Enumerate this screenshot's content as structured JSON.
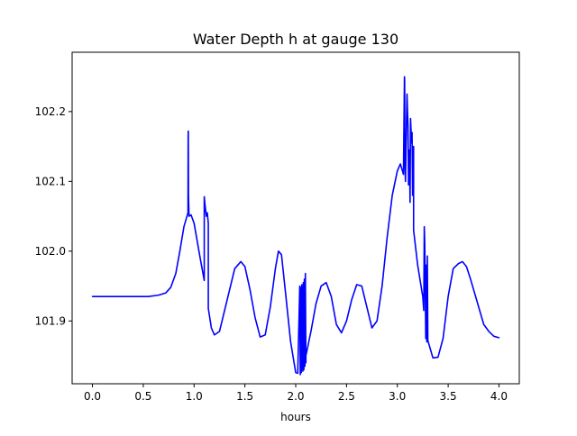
{
  "chart_data": {
    "type": "line",
    "title": "Water Depth h at gauge 130",
    "xlabel": "hours",
    "ylabel": "",
    "xlim": [
      -0.2,
      4.2
    ],
    "ylim": [
      101.81,
      102.285
    ],
    "xticks": [
      0.0,
      0.5,
      1.0,
      1.5,
      2.0,
      2.5,
      3.0,
      3.5,
      4.0
    ],
    "xtick_labels": [
      "0.0",
      "0.5",
      "1.0",
      "1.5",
      "2.0",
      "2.5",
      "3.0",
      "3.5",
      "4.0"
    ],
    "yticks": [
      101.9,
      102.0,
      102.1,
      102.2
    ],
    "ytick_labels": [
      "101.9",
      "102.0",
      "102.1",
      "102.2"
    ],
    "grid": false,
    "series": [
      {
        "color": "#0000ff",
        "x": [
          0.0,
          0.2,
          0.4,
          0.55,
          0.65,
          0.72,
          0.77,
          0.82,
          0.86,
          0.9,
          0.93,
          0.94,
          0.942,
          0.943,
          0.945,
          0.95,
          0.97,
          1.0,
          1.03,
          1.06,
          1.1,
          1.1,
          1.105,
          1.12,
          1.13,
          1.14,
          1.14,
          1.17,
          1.2,
          1.25,
          1.3,
          1.35,
          1.4,
          1.46,
          1.5,
          1.55,
          1.6,
          1.65,
          1.7,
          1.75,
          1.8,
          1.83,
          1.86,
          1.9,
          1.95,
          2.0,
          2.02,
          2.04,
          2.045,
          2.05,
          2.055,
          2.06,
          2.07,
          2.075,
          2.08,
          2.085,
          2.09,
          2.095,
          2.1,
          2.1,
          2.15,
          2.2,
          2.25,
          2.3,
          2.35,
          2.4,
          2.45,
          2.5,
          2.55,
          2.6,
          2.65,
          2.7,
          2.75,
          2.8,
          2.85,
          2.9,
          2.95,
          3.0,
          3.03,
          3.06,
          3.07,
          3.072,
          3.075,
          3.08,
          3.095,
          3.1,
          3.105,
          3.11,
          3.12,
          3.125,
          3.13,
          3.14,
          3.145,
          3.15,
          3.16,
          3.16,
          3.2,
          3.25,
          3.26,
          3.265,
          3.27,
          3.28,
          3.285,
          3.29,
          3.295,
          3.3,
          3.35,
          3.4,
          3.45,
          3.5,
          3.55,
          3.6,
          3.64,
          3.68,
          3.72,
          3.76,
          3.8,
          3.85,
          3.9,
          3.95,
          4.0
        ],
        "values": [
          101.935,
          101.935,
          101.935,
          101.935,
          101.937,
          101.94,
          101.948,
          101.968,
          102.0,
          102.035,
          102.05,
          102.055,
          102.17,
          102.172,
          102.08,
          102.05,
          102.052,
          102.04,
          102.015,
          101.99,
          101.958,
          102.078,
          102.07,
          102.05,
          102.055,
          102.04,
          101.918,
          101.89,
          101.88,
          101.885,
          101.915,
          101.945,
          101.975,
          101.985,
          101.978,
          101.945,
          101.905,
          101.877,
          101.88,
          101.92,
          101.975,
          102.0,
          101.995,
          101.94,
          101.87,
          101.826,
          101.825,
          101.95,
          101.823,
          101.948,
          101.826,
          101.952,
          101.828,
          101.955,
          101.83,
          101.96,
          101.835,
          101.968,
          101.84,
          101.85,
          101.885,
          101.925,
          101.95,
          101.955,
          101.935,
          101.895,
          101.883,
          101.9,
          101.93,
          101.952,
          101.95,
          101.92,
          101.89,
          101.9,
          101.95,
          102.02,
          102.08,
          102.115,
          102.125,
          102.11,
          102.25,
          102.245,
          102.12,
          102.1,
          102.225,
          102.2,
          102.18,
          102.095,
          102.145,
          102.07,
          102.19,
          102.155,
          102.17,
          102.08,
          102.15,
          102.03,
          101.98,
          101.935,
          101.915,
          102.035,
          102.01,
          101.875,
          101.98,
          101.87,
          101.993,
          101.872,
          101.847,
          101.848,
          101.875,
          101.935,
          101.975,
          101.982,
          101.985,
          101.978,
          101.96,
          101.94,
          101.92,
          101.895,
          101.885,
          101.878,
          101.876
        ]
      }
    ]
  }
}
